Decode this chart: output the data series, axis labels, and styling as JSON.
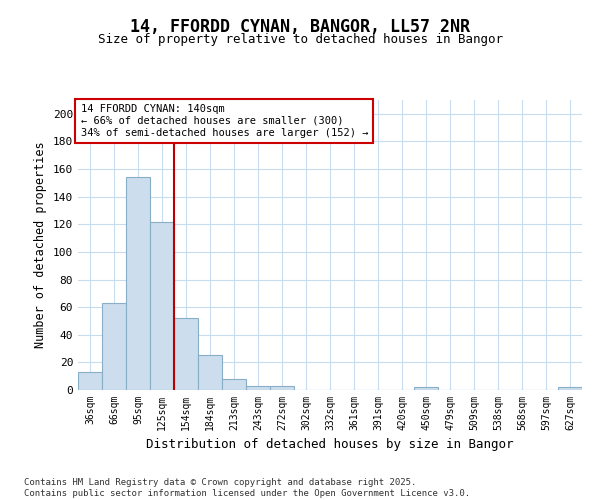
{
  "title": "14, FFORDD CYNAN, BANGOR, LL57 2NR",
  "subtitle": "Size of property relative to detached houses in Bangor",
  "xlabel": "Distribution of detached houses by size in Bangor",
  "ylabel": "Number of detached properties",
  "categories": [
    "36sqm",
    "66sqm",
    "95sqm",
    "125sqm",
    "154sqm",
    "184sqm",
    "213sqm",
    "243sqm",
    "272sqm",
    "302sqm",
    "332sqm",
    "361sqm",
    "391sqm",
    "420sqm",
    "450sqm",
    "479sqm",
    "509sqm",
    "538sqm",
    "568sqm",
    "597sqm",
    "627sqm"
  ],
  "values": [
    13,
    63,
    154,
    122,
    52,
    25,
    8,
    3,
    3,
    0,
    0,
    0,
    0,
    0,
    2,
    0,
    0,
    0,
    0,
    0,
    2
  ],
  "bar_color": "#ccdded",
  "bar_edge_color": "#88aec8",
  "vline_x_index": 3.5,
  "vline_color": "#bb0000",
  "annotation_text": "14 FFORDD CYNAN: 140sqm\n← 66% of detached houses are smaller (300)\n34% of semi-detached houses are larger (152) →",
  "annotation_box_color": "#cc0000",
  "ylim": [
    0,
    210
  ],
  "yticks": [
    0,
    20,
    40,
    60,
    80,
    100,
    120,
    140,
    160,
    180,
    200
  ],
  "footer": "Contains HM Land Registry data © Crown copyright and database right 2025.\nContains public sector information licensed under the Open Government Licence v3.0.",
  "bg_color": "#ffffff",
  "plot_bg_color": "#ffffff",
  "grid_color": "#c8dcf0"
}
